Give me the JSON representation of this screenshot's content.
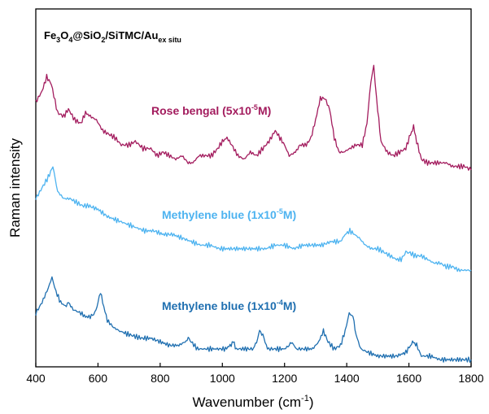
{
  "chart_data": {
    "type": "line",
    "title": {
      "main": "Fe",
      "s1": "3",
      "mid1": "O",
      "s2": "4",
      "mid2": "@SiO",
      "s3": "2",
      "mid3": "/SiTMC/Au",
      "s4": "ex situ"
    },
    "xlabel": {
      "main": "Wavenumber (cm",
      "sup": "-1",
      "end": ")"
    },
    "ylabel": "Raman intensity",
    "xlim": [
      400,
      1800
    ],
    "ylim": [
      0,
      100
    ],
    "xticks": [
      "400",
      "600",
      "800",
      "1000",
      "1200",
      "1400",
      "1600",
      "1800"
    ],
    "yticks_shown": false,
    "grid": false,
    "series": [
      {
        "name": "Rose bengal (5x10-5M)",
        "label": {
          "main": "Rose bengal (5x10",
          "sup": "-5",
          "end": "M)"
        },
        "color": "#A31C5E",
        "points": [
          [
            400,
            74
          ],
          [
            420,
            77
          ],
          [
            435,
            81
          ],
          [
            450,
            79
          ],
          [
            470,
            71
          ],
          [
            490,
            70
          ],
          [
            505,
            72
          ],
          [
            525,
            69
          ],
          [
            545,
            68
          ],
          [
            560,
            71
          ],
          [
            575,
            70
          ],
          [
            595,
            69
          ],
          [
            615,
            66
          ],
          [
            635,
            65
          ],
          [
            655,
            64
          ],
          [
            675,
            62
          ],
          [
            700,
            62
          ],
          [
            720,
            63
          ],
          [
            745,
            61
          ],
          [
            770,
            61
          ],
          [
            790,
            59
          ],
          [
            810,
            60
          ],
          [
            830,
            59
          ],
          [
            850,
            58
          ],
          [
            870,
            59
          ],
          [
            890,
            57
          ],
          [
            905,
            57
          ],
          [
            925,
            59
          ],
          [
            945,
            59
          ],
          [
            965,
            59
          ],
          [
            985,
            61
          ],
          [
            1000,
            63
          ],
          [
            1015,
            64
          ],
          [
            1030,
            62
          ],
          [
            1050,
            59
          ],
          [
            1070,
            58
          ],
          [
            1090,
            60
          ],
          [
            1110,
            59
          ],
          [
            1130,
            61
          ],
          [
            1150,
            63
          ],
          [
            1170,
            66
          ],
          [
            1185,
            64
          ],
          [
            1200,
            62
          ],
          [
            1215,
            59
          ],
          [
            1235,
            60
          ],
          [
            1250,
            62
          ],
          [
            1270,
            62
          ],
          [
            1285,
            64
          ],
          [
            1300,
            69
          ],
          [
            1315,
            75
          ],
          [
            1330,
            75
          ],
          [
            1345,
            72
          ],
          [
            1360,
            64
          ],
          [
            1375,
            60
          ],
          [
            1390,
            60
          ],
          [
            1410,
            61
          ],
          [
            1430,
            62
          ],
          [
            1450,
            62
          ],
          [
            1465,
            68
          ],
          [
            1478,
            80
          ],
          [
            1487,
            84
          ],
          [
            1496,
            75
          ],
          [
            1510,
            63
          ],
          [
            1530,
            60
          ],
          [
            1550,
            59
          ],
          [
            1570,
            60
          ],
          [
            1590,
            61
          ],
          [
            1605,
            65
          ],
          [
            1615,
            67
          ],
          [
            1625,
            63
          ],
          [
            1640,
            58
          ],
          [
            1660,
            57
          ],
          [
            1680,
            57
          ],
          [
            1700,
            57
          ],
          [
            1720,
            57
          ],
          [
            1740,
            56
          ],
          [
            1760,
            56
          ],
          [
            1780,
            56
          ],
          [
            1800,
            55
          ]
        ]
      },
      {
        "name": "Methylene blue (1x10-5M)",
        "label": {
          "main": "Methylene blue (1x10",
          "sup": "-5",
          "end": "M)"
        },
        "color": "#4DB3F0",
        "points": [
          [
            400,
            47
          ],
          [
            420,
            50
          ],
          [
            440,
            53
          ],
          [
            455,
            56
          ],
          [
            470,
            49
          ],
          [
            490,
            47
          ],
          [
            510,
            47
          ],
          [
            530,
            46
          ],
          [
            550,
            45
          ],
          [
            570,
            45
          ],
          [
            600,
            44
          ],
          [
            630,
            42
          ],
          [
            660,
            41
          ],
          [
            690,
            40
          ],
          [
            720,
            39
          ],
          [
            750,
            38
          ],
          [
            780,
            38
          ],
          [
            810,
            37
          ],
          [
            840,
            37
          ],
          [
            870,
            36
          ],
          [
            900,
            35
          ],
          [
            930,
            34
          ],
          [
            960,
            34
          ],
          [
            990,
            33
          ],
          [
            1020,
            33
          ],
          [
            1050,
            33
          ],
          [
            1080,
            33
          ],
          [
            1110,
            33
          ],
          [
            1140,
            33
          ],
          [
            1170,
            34
          ],
          [
            1200,
            34
          ],
          [
            1230,
            33
          ],
          [
            1260,
            34
          ],
          [
            1290,
            34
          ],
          [
            1320,
            34
          ],
          [
            1350,
            35
          ],
          [
            1380,
            35
          ],
          [
            1395,
            37
          ],
          [
            1410,
            38
          ],
          [
            1425,
            37
          ],
          [
            1440,
            36
          ],
          [
            1460,
            34
          ],
          [
            1480,
            33
          ],
          [
            1500,
            33
          ],
          [
            1520,
            32
          ],
          [
            1540,
            31
          ],
          [
            1560,
            30
          ],
          [
            1575,
            30
          ],
          [
            1590,
            32
          ],
          [
            1600,
            32
          ],
          [
            1620,
            31
          ],
          [
            1640,
            31
          ],
          [
            1660,
            30
          ],
          [
            1680,
            29
          ],
          [
            1700,
            29
          ],
          [
            1720,
            28
          ],
          [
            1740,
            28
          ],
          [
            1760,
            27
          ],
          [
            1780,
            27
          ],
          [
            1800,
            27
          ]
        ]
      },
      {
        "name": "Methylene blue (1x10-4M)",
        "label": {
          "main": "Methylene blue (1x10",
          "sup": "-4",
          "end": "M)"
        },
        "color": "#1F6FB0",
        "points": [
          [
            400,
            15
          ],
          [
            420,
            18
          ],
          [
            440,
            22
          ],
          [
            452,
            25
          ],
          [
            465,
            21
          ],
          [
            480,
            18
          ],
          [
            495,
            17
          ],
          [
            505,
            18
          ],
          [
            520,
            16
          ],
          [
            545,
            15
          ],
          [
            560,
            14
          ],
          [
            575,
            14
          ],
          [
            590,
            15
          ],
          [
            600,
            18
          ],
          [
            608,
            21
          ],
          [
            615,
            18
          ],
          [
            630,
            13
          ],
          [
            650,
            11
          ],
          [
            670,
            10
          ],
          [
            700,
            9
          ],
          [
            740,
            8
          ],
          [
            770,
            8
          ],
          [
            800,
            7
          ],
          [
            830,
            6
          ],
          [
            860,
            6
          ],
          [
            880,
            7
          ],
          [
            890,
            8
          ],
          [
            900,
            7
          ],
          [
            920,
            5
          ],
          [
            950,
            5
          ],
          [
            980,
            5
          ],
          [
            1010,
            5
          ],
          [
            1025,
            6
          ],
          [
            1035,
            7
          ],
          [
            1045,
            5
          ],
          [
            1070,
            5
          ],
          [
            1100,
            5
          ],
          [
            1110,
            7
          ],
          [
            1120,
            10
          ],
          [
            1130,
            9
          ],
          [
            1145,
            5
          ],
          [
            1170,
            5
          ],
          [
            1200,
            5
          ],
          [
            1215,
            6
          ],
          [
            1225,
            7
          ],
          [
            1235,
            5
          ],
          [
            1260,
            5
          ],
          [
            1290,
            5
          ],
          [
            1310,
            7
          ],
          [
            1325,
            10
          ],
          [
            1340,
            7
          ],
          [
            1360,
            5
          ],
          [
            1380,
            6
          ],
          [
            1395,
            10
          ],
          [
            1408,
            15
          ],
          [
            1420,
            14
          ],
          [
            1430,
            9
          ],
          [
            1445,
            5
          ],
          [
            1470,
            4
          ],
          [
            1500,
            3
          ],
          [
            1530,
            3
          ],
          [
            1560,
            3
          ],
          [
            1590,
            4
          ],
          [
            1605,
            6
          ],
          [
            1615,
            7
          ],
          [
            1625,
            6
          ],
          [
            1640,
            3
          ],
          [
            1670,
            3
          ],
          [
            1700,
            2
          ],
          [
            1730,
            2
          ],
          [
            1760,
            2
          ],
          [
            1780,
            2
          ],
          [
            1800,
            2
          ]
        ]
      }
    ]
  }
}
